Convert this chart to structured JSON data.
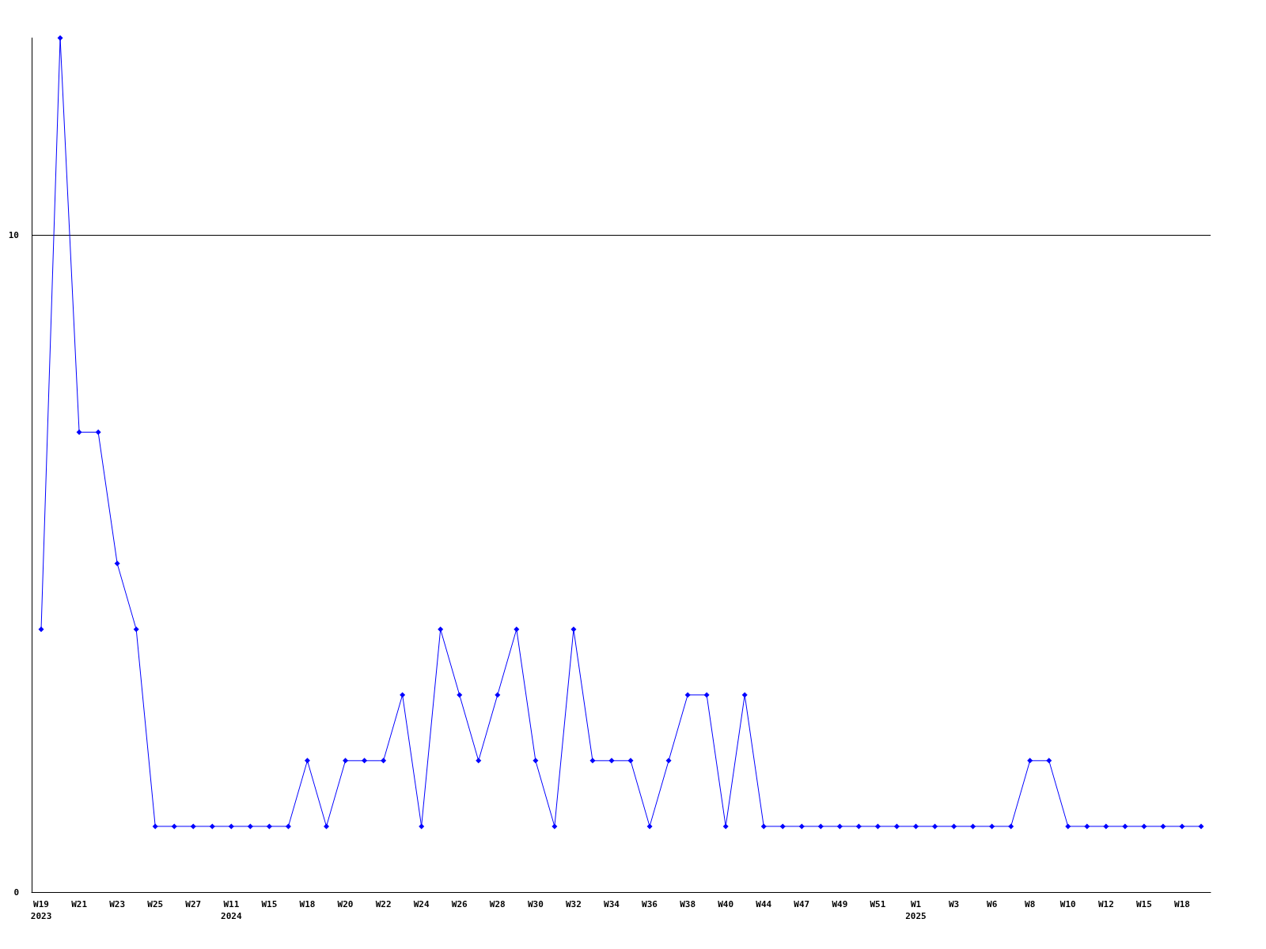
{
  "chart_data": {
    "type": "line",
    "categories": [
      "W19\n2023",
      null,
      "W21",
      null,
      "W23",
      null,
      "W25",
      null,
      "W27",
      null,
      "W11\n2024",
      null,
      "W15",
      null,
      "W18",
      null,
      "W20",
      null,
      "W22",
      null,
      "W24",
      null,
      "W26",
      null,
      "W28",
      null,
      "W30",
      null,
      "W32",
      null,
      "W34",
      null,
      "W36",
      null,
      "W38",
      null,
      "W40",
      null,
      "W44",
      null,
      "W47",
      null,
      "W49",
      null,
      "W51",
      null,
      "W1\n2025",
      null,
      "W3",
      null,
      "W6",
      null,
      "W8",
      null,
      "W10",
      null,
      "W12",
      null,
      "W15",
      null,
      "W18",
      null
    ],
    "series": [
      {
        "color": "#0000ff",
        "values": [
          4,
          13,
          7,
          7,
          5,
          4,
          1,
          1,
          1,
          1,
          1,
          1,
          1,
          1,
          2,
          1,
          2,
          2,
          2,
          3,
          1,
          4,
          3,
          2,
          3,
          4,
          2,
          1,
          4,
          2,
          2,
          2,
          1,
          2,
          3,
          3,
          1,
          3,
          1,
          1,
          1,
          1,
          1,
          1,
          1,
          1,
          1,
          1,
          1,
          1,
          1,
          1,
          2,
          2,
          1,
          1,
          1,
          1,
          1,
          1,
          1,
          1
        ]
      }
    ],
    "ylim": [
      0,
      13
    ],
    "yticks": [
      0,
      10
    ],
    "grid": "y",
    "marker": "diamond",
    "line_style": "solid"
  }
}
